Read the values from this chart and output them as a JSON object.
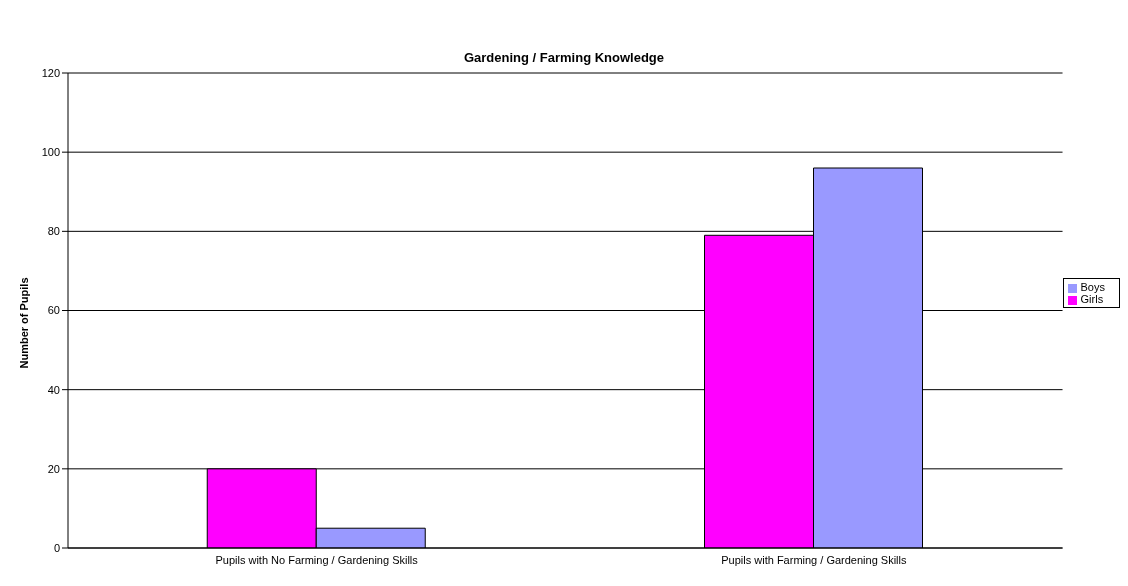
{
  "chart_data": {
    "type": "bar",
    "title": "Gardening / Farming Knowledge",
    "ylabel": "Number of Pupils",
    "categories": [
      "Pupils with No Farming / Gardening Skills",
      "Pupils with Farming / Gardening Skills"
    ],
    "series": [
      {
        "name": "Girls",
        "color": "#ff00ff",
        "values": [
          20,
          79
        ]
      },
      {
        "name": "Boys",
        "color": "#9999ff",
        "values": [
          5,
          96
        ]
      }
    ],
    "ylim": [
      0,
      120
    ],
    "yticks": [
      0,
      20,
      40,
      60,
      80,
      100,
      120
    ],
    "grid": "y",
    "legend": "right"
  }
}
